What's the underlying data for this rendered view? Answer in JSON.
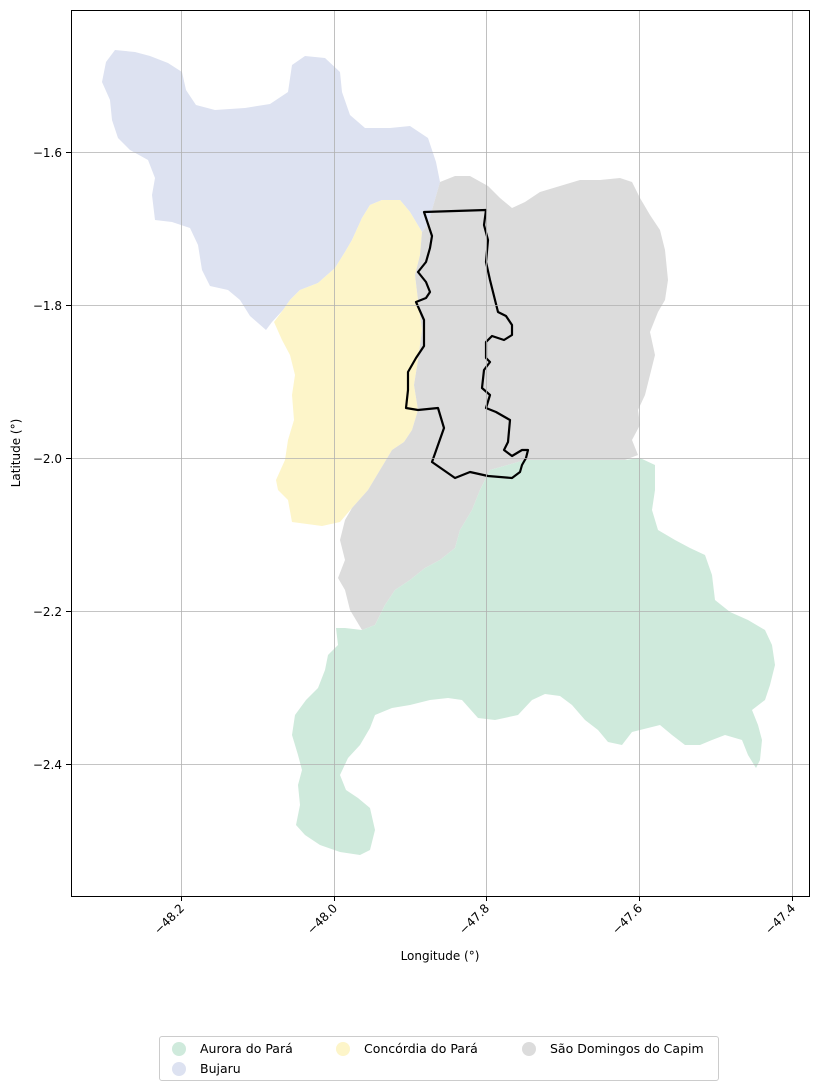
{
  "map": {
    "xlabel": "Longitude (°)",
    "ylabel": "Latitude (°)",
    "x_ticks": [
      "−48.2",
      "−48.0",
      "−47.8",
      "−47.6",
      "−47.4"
    ],
    "y_ticks": [
      "−1.6",
      "−1.8",
      "−2.0",
      "−2.2",
      "−2.4"
    ],
    "grid": true
  },
  "legend": {
    "placement": "bottom-center",
    "items": [
      {
        "label": "Aurora do Pará",
        "color": "#cfeadc"
      },
      {
        "label": "Concórdia do Pará",
        "color": "#fdf5c9"
      },
      {
        "label": "São Domingos do Capim",
        "color": "#dcdcdc"
      },
      {
        "label": "Bujaru",
        "color": "#dde2f1"
      }
    ]
  },
  "regions": [
    {
      "name": "Bujaru",
      "color": "#dde2f1"
    },
    {
      "name": "Concórdia do Pará",
      "color": "#fdf5c9"
    },
    {
      "name": "São Domingos do Capim",
      "color": "#dcdcdc"
    },
    {
      "name": "Aurora do Pará",
      "color": "#cfeadc"
    }
  ],
  "highlight": {
    "outline_color": "#000000"
  }
}
